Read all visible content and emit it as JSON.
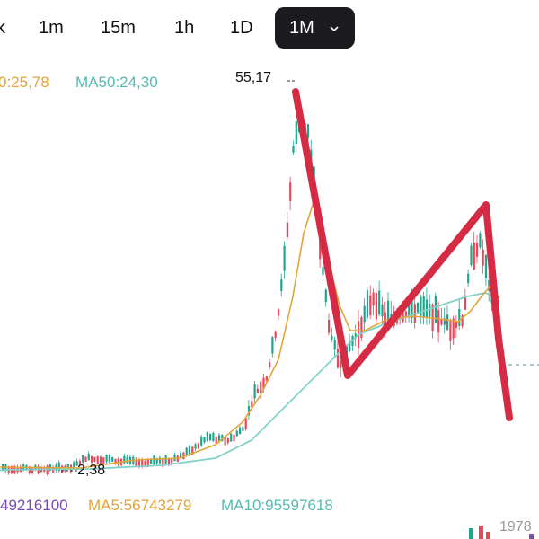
{
  "timeframe_tabs": {
    "partial_left": "k",
    "items": [
      "1m",
      "15m",
      "1h",
      "1D"
    ],
    "active": "1M"
  },
  "price_legend": {
    "ma_partial": "0:25,78",
    "ma50": "MA50:24,30"
  },
  "volume_legend": {
    "vol_partial": "49216100",
    "ma5": "MA5:56743279",
    "ma10": "MA10:95597618"
  },
  "price_labels": {
    "high": "55,17",
    "low": "2,38"
  },
  "volume_axis_value": "1978",
  "colors": {
    "up": "#1fa58e",
    "down": "#e8485a",
    "ma_short": "#e3a43a",
    "ma_long": "#7fd1c9",
    "annotation": "#d62b45",
    "ma10_text": "#58b9b1",
    "vol_text": "#7b4bb8"
  }
}
